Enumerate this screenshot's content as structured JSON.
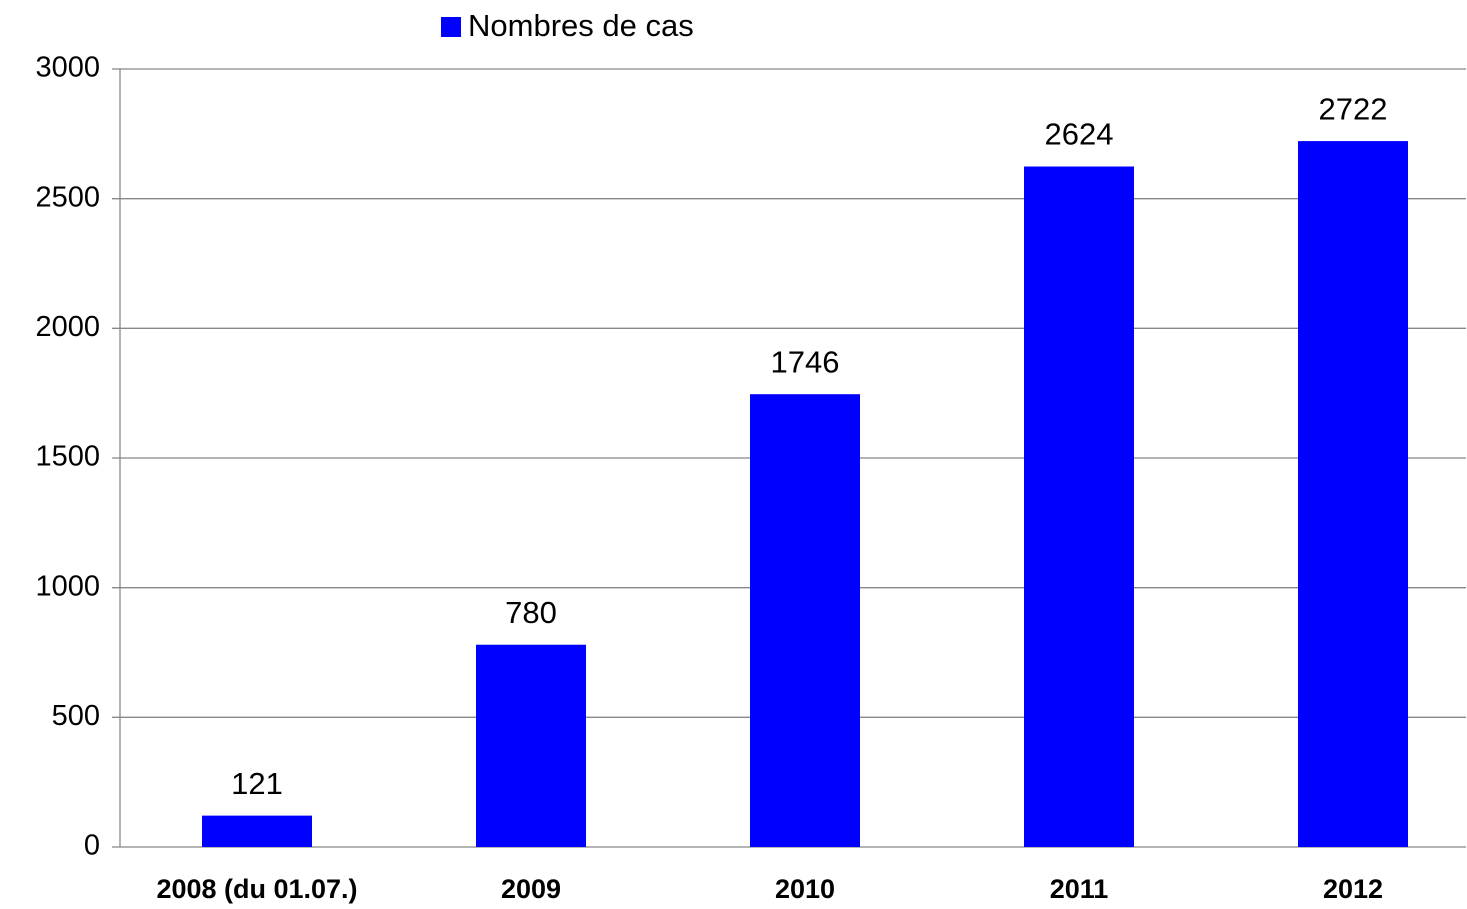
{
  "chart_data": {
    "type": "bar",
    "categories": [
      "2008 (du 01.07.)",
      "2009",
      "2010",
      "2011",
      "2012"
    ],
    "series": [
      {
        "name": "Nombres de cas",
        "color": "#0000ff",
        "values": [
          121,
          780,
          1746,
          2624,
          2722
        ]
      }
    ],
    "ylim": [
      0,
      3000
    ],
    "yticks": [
      0,
      500,
      1000,
      1500,
      2000,
      2500,
      3000
    ],
    "grid": true,
    "legend": "top"
  }
}
